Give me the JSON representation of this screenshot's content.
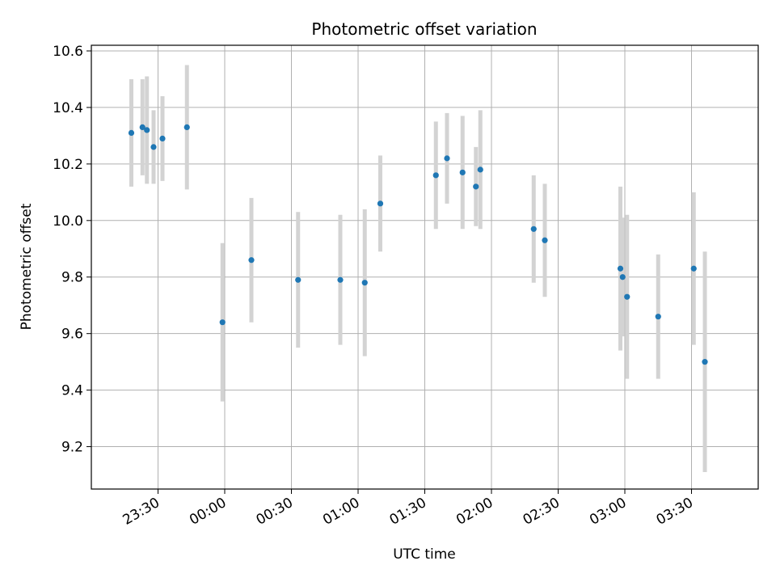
{
  "chart_data": {
    "type": "scatter",
    "title": "Photometric offset variation",
    "xlabel": "UTC time",
    "ylabel": "Photometric offset",
    "xlim": [
      "23:00",
      "04:00"
    ],
    "ylim": [
      9.05,
      10.62
    ],
    "grid": true,
    "x_ticks": [
      "23:30",
      "00:00",
      "00:30",
      "01:00",
      "01:30",
      "02:00",
      "02:30",
      "03:00",
      "03:30"
    ],
    "y_ticks": [
      "9.2",
      "9.4",
      "9.6",
      "9.8",
      "10.0",
      "10.2",
      "10.4",
      "10.6"
    ],
    "series": [
      {
        "marker_color": "#1f77b4",
        "errorbar_color": "#d3d3d3",
        "points": [
          {
            "x": "23:18",
            "y": 10.31,
            "err": 0.19
          },
          {
            "x": "23:23",
            "y": 10.33,
            "err": 0.17
          },
          {
            "x": "23:25",
            "y": 10.32,
            "err": 0.19
          },
          {
            "x": "23:28",
            "y": 10.26,
            "err": 0.13
          },
          {
            "x": "23:32",
            "y": 10.29,
            "err": 0.15
          },
          {
            "x": "23:43",
            "y": 10.33,
            "err": 0.22
          },
          {
            "x": "23:59",
            "y": 9.64,
            "err": 0.28
          },
          {
            "x": "00:12",
            "y": 9.86,
            "err": 0.22
          },
          {
            "x": "00:33",
            "y": 9.79,
            "err": 0.24
          },
          {
            "x": "00:52",
            "y": 9.79,
            "err": 0.23
          },
          {
            "x": "01:03",
            "y": 9.78,
            "err": 0.26
          },
          {
            "x": "01:10",
            "y": 10.06,
            "err": 0.17
          },
          {
            "x": "01:35",
            "y": 10.16,
            "err": 0.19
          },
          {
            "x": "01:40",
            "y": 10.22,
            "err": 0.16
          },
          {
            "x": "01:47",
            "y": 10.17,
            "err": 0.2
          },
          {
            "x": "01:53",
            "y": 10.12,
            "err": 0.14
          },
          {
            "x": "01:55",
            "y": 10.18,
            "err": 0.21
          },
          {
            "x": "02:19",
            "y": 9.97,
            "err": 0.19
          },
          {
            "x": "02:24",
            "y": 9.93,
            "err": 0.2
          },
          {
            "x": "02:58",
            "y": 9.83,
            "err": 0.29
          },
          {
            "x": "02:59",
            "y": 9.8,
            "err": 0.21
          },
          {
            "x": "03:01",
            "y": 9.73,
            "err": 0.29
          },
          {
            "x": "03:15",
            "y": 9.66,
            "err": 0.22
          },
          {
            "x": "03:31",
            "y": 9.83,
            "err": 0.27
          },
          {
            "x": "03:36",
            "y": 9.5,
            "err": 0.39
          }
        ]
      }
    ]
  }
}
